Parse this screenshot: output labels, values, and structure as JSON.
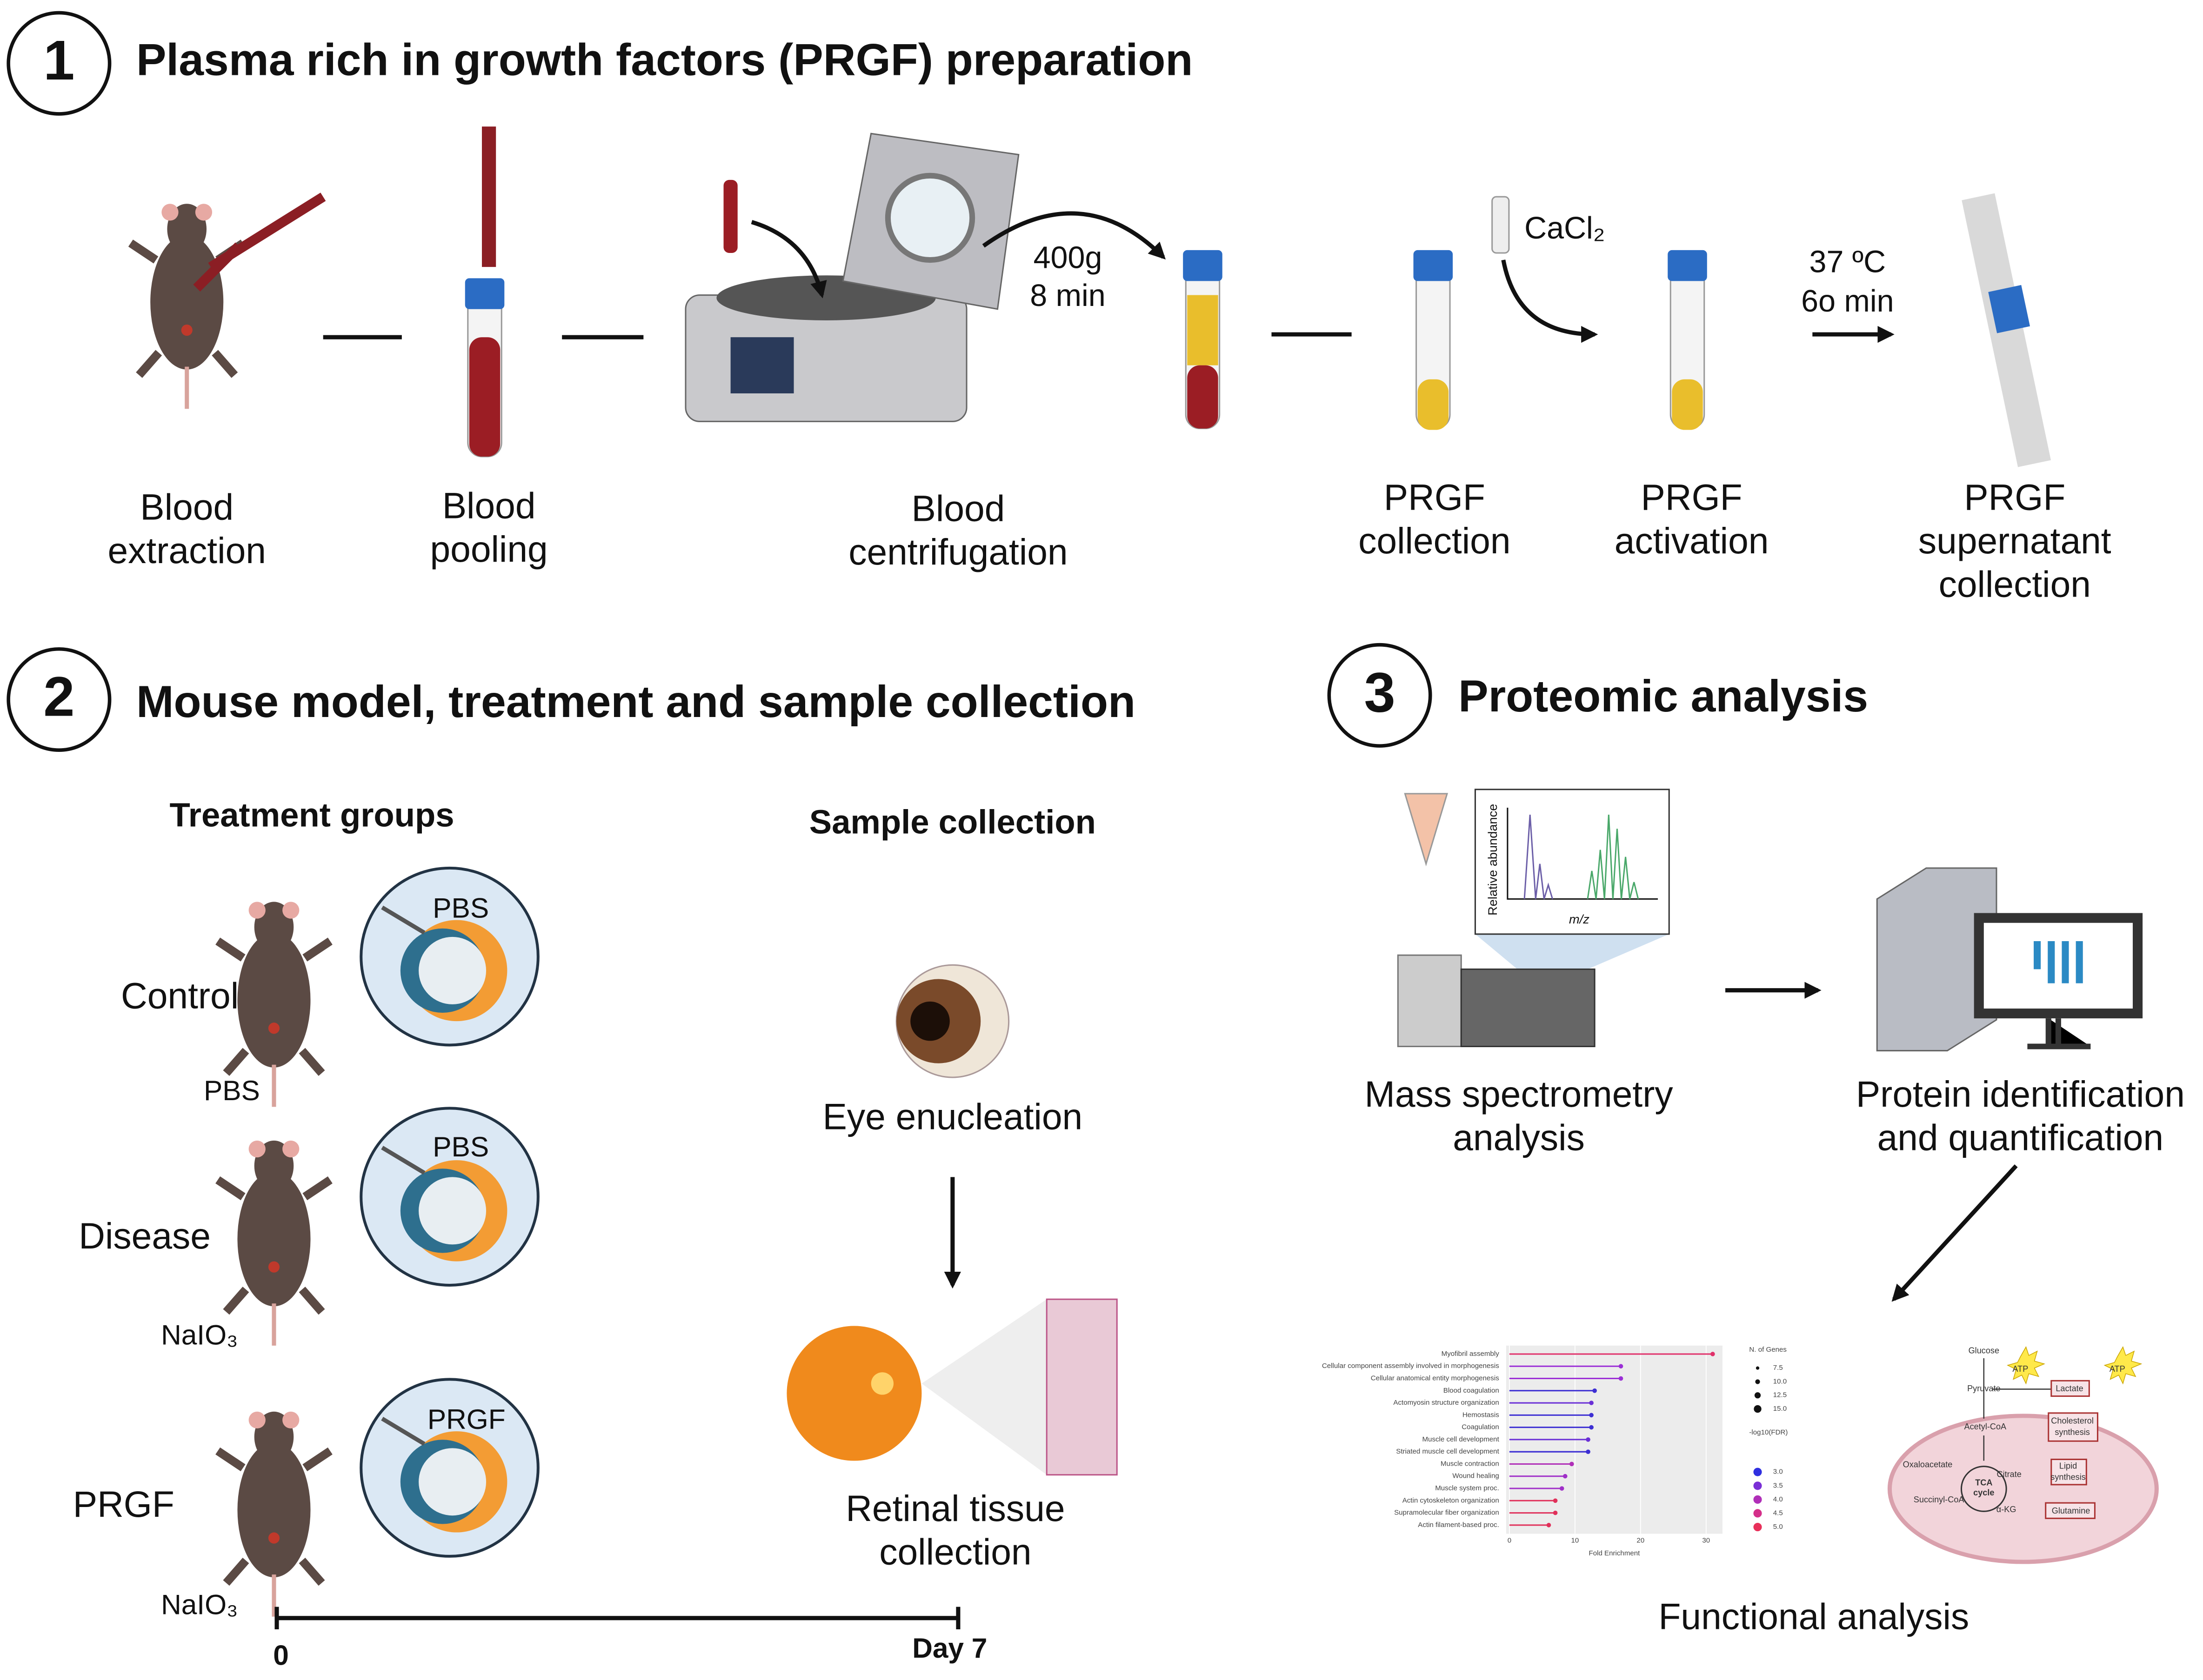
{
  "section1": {
    "number": "1",
    "title": "Plasma rich in growth factors (PRGF) preparation",
    "steps": [
      {
        "lines": [
          "Blood",
          "extraction"
        ]
      },
      {
        "lines": [
          "Blood",
          "pooling"
        ]
      },
      {
        "lines": [
          "Blood",
          "centrifugation"
        ]
      },
      {
        "lines": [
          "PRGF",
          "collection"
        ]
      },
      {
        "lines": [
          "PRGF",
          "activation"
        ]
      },
      {
        "lines": [
          "PRGF",
          "supernatant",
          "collection"
        ]
      }
    ],
    "centrifuge_params": [
      "400g",
      "8 min"
    ],
    "reagent": "CaCl₂",
    "incubation": [
      "37 ºC",
      "6o min"
    ]
  },
  "section2": {
    "number": "2",
    "title": "Mouse model, treatment and sample collection",
    "treatment_title": "Treatment groups",
    "groups": [
      {
        "name": "Control",
        "eye_injection": "PBS",
        "systemic_injection": "PBS"
      },
      {
        "name": "Disease",
        "eye_injection": "PBS",
        "systemic_injection": "NaIO₃"
      },
      {
        "name": "PRGF",
        "eye_injection": "PRGF",
        "systemic_injection": "NaIO₃"
      }
    ],
    "sample_title": "Sample collection",
    "enucleation": "Eye enucleation",
    "retina_lines": [
      "Retinal tissue",
      "collection"
    ],
    "timeline": [
      "0",
      "Day 7"
    ]
  },
  "section3": {
    "number": "3",
    "title": "Proteomic analysis",
    "ms_plot": {
      "y_label": "Relative abundance",
      "x_label": "m/z"
    },
    "ms_lines": [
      "Mass spectrometry",
      "analysis"
    ],
    "protein_lines": [
      "Protein identification",
      "and quantification"
    ],
    "functional_title": "Functional analysis",
    "enrichment_chart": {
      "type": "lollipop",
      "x_label": "Fold Enrichment",
      "categories": [
        "Myofibril assembly",
        "Cellular component assembly involved in morphogenesis",
        "Cellular anatomical entity morphogenesis",
        "Blood coagulation",
        "Actomyosin structure organization",
        "Hemostasis",
        "Coagulation",
        "Muscle cell development",
        "Striated muscle cell development",
        "Muscle contraction",
        "Wound healing",
        "Muscle system proc.",
        "Actin cytoskeleton organization",
        "Supramolecular fiber organization",
        "Actin filament-based proc."
      ],
      "values": [
        31,
        17,
        17,
        13,
        12.5,
        12.5,
        12.5,
        12,
        12,
        9.5,
        8.5,
        8,
        7,
        7,
        6
      ],
      "colors": [
        "#e0306a",
        "#9b2fd6",
        "#9b2fd6",
        "#3d2fd3",
        "#6a2fd6",
        "#3d2fd3",
        "#3d2fd3",
        "#6a2fd6",
        "#3d2fd3",
        "#b02fb8",
        "#a02fc8",
        "#a02fc8",
        "#e0305a",
        "#e0305a",
        "#e0305a"
      ],
      "xlim": [
        -0.5,
        32.5
      ],
      "xticks": [
        0,
        10,
        20,
        30
      ],
      "size_legend": {
        "title": "N. of Genes",
        "entries": [
          "7.5",
          "10.0",
          "12.5",
          "15.0"
        ]
      },
      "color_legend": {
        "title": "-log10(FDR)",
        "entries": [
          "3.0",
          "3.5",
          "4.0",
          "4.5",
          "5.0"
        ],
        "colors": [
          "#2f2fe0",
          "#7a2fd6",
          "#b02fb8",
          "#d42f8a",
          "#e8305a"
        ]
      }
    },
    "pathway": {
      "glucose": "Glucose",
      "atp": [
        "ATP",
        "ATP"
      ],
      "pyruvate": "Pyruvate",
      "lactate": "Lactate",
      "acetyl_coa": "Acetyl-CoA",
      "cholesterol": [
        "Cholesterol",
        "synthesis"
      ],
      "oxaloacetate": "Oxaloacetate",
      "citrate": "Citrate",
      "lipid": [
        "Lipid",
        "synthesis"
      ],
      "tca": [
        "TCA",
        "cycle"
      ],
      "succinyl": "Succinyl-CoA",
      "akg": "α-KG",
      "glutamine": "Glutamine"
    }
  }
}
